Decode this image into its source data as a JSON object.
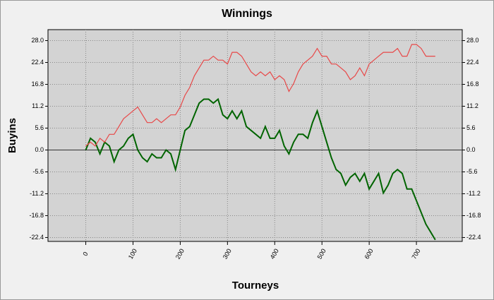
{
  "chart_data": {
    "type": "line",
    "title": "Winnings",
    "xlabel": "Tourneys",
    "ylabel": "Buyins",
    "x": [
      0,
      10,
      20,
      30,
      40,
      50,
      60,
      70,
      80,
      90,
      100,
      110,
      120,
      130,
      140,
      150,
      160,
      170,
      180,
      190,
      200,
      210,
      220,
      230,
      240,
      250,
      260,
      270,
      280,
      290,
      300,
      310,
      320,
      330,
      340,
      350,
      360,
      370,
      380,
      390,
      400,
      410,
      420,
      430,
      440,
      450,
      460,
      470,
      480,
      490,
      500,
      510,
      520,
      530,
      540,
      550,
      560,
      570,
      580,
      590,
      600,
      610,
      620,
      630,
      640,
      650,
      660,
      670,
      680,
      690,
      700,
      710,
      720,
      730,
      740
    ],
    "series": [
      {
        "color": "#006400",
        "values": [
          0,
          3,
          2,
          -1,
          2,
          1,
          -3,
          0,
          1,
          3,
          4,
          0,
          -2,
          -3,
          -1,
          -2,
          -2,
          0,
          -1,
          -5,
          0,
          5,
          6,
          9,
          12,
          13,
          13,
          12,
          13,
          9,
          8,
          10,
          8,
          10,
          6,
          5,
          4,
          3,
          6,
          3,
          3,
          5,
          1,
          -1,
          2,
          4,
          4,
          3,
          7,
          10,
          6,
          2,
          -2,
          -5,
          -6,
          -9,
          -7,
          -6,
          -8,
          -6,
          -10,
          -8,
          -6,
          -11,
          -9,
          -6,
          -5,
          -6,
          -10,
          -10,
          -13,
          -16,
          -19,
          -21,
          -23
        ]
      },
      {
        "color": "#e84848",
        "values": [
          1,
          2,
          1,
          3,
          2,
          4,
          4,
          6,
          8,
          9,
          10,
          11,
          9,
          7,
          7,
          8,
          7,
          8,
          9,
          9,
          11,
          14,
          16,
          19,
          21,
          23,
          23,
          24,
          23,
          23,
          22,
          25,
          25,
          24,
          22,
          20,
          19,
          20,
          19,
          20,
          18,
          19,
          18,
          15,
          17,
          20,
          22,
          23,
          24,
          26,
          24,
          24,
          22,
          22,
          21,
          20,
          18,
          19,
          21,
          19,
          22,
          23,
          24,
          25,
          25,
          25,
          26,
          24,
          24,
          27,
          27,
          26,
          24,
          24,
          24
        ]
      }
    ],
    "xlim": [
      -80,
      797
    ],
    "xticks": [
      0,
      100,
      200,
      300,
      400,
      500,
      600,
      700
    ],
    "ylim": [
      -23.4,
      30.8
    ],
    "yticks": [
      {
        "value": -22.4,
        "label": "-22.4"
      },
      {
        "value": -16.8,
        "label": "-16.8"
      },
      {
        "value": -11.2,
        "label": "-11.2"
      },
      {
        "value": -5.6,
        "label": "-5.6"
      },
      {
        "value": 0,
        "label": "0.0"
      },
      {
        "value": 5.6,
        "label": "5.6"
      },
      {
        "value": 11.2,
        "label": "11.2"
      },
      {
        "value": 16.8,
        "label": "16.8"
      },
      {
        "value": 22.4,
        "label": "22.4"
      },
      {
        "value": 28,
        "label": "28.0"
      }
    ],
    "grid": true
  }
}
